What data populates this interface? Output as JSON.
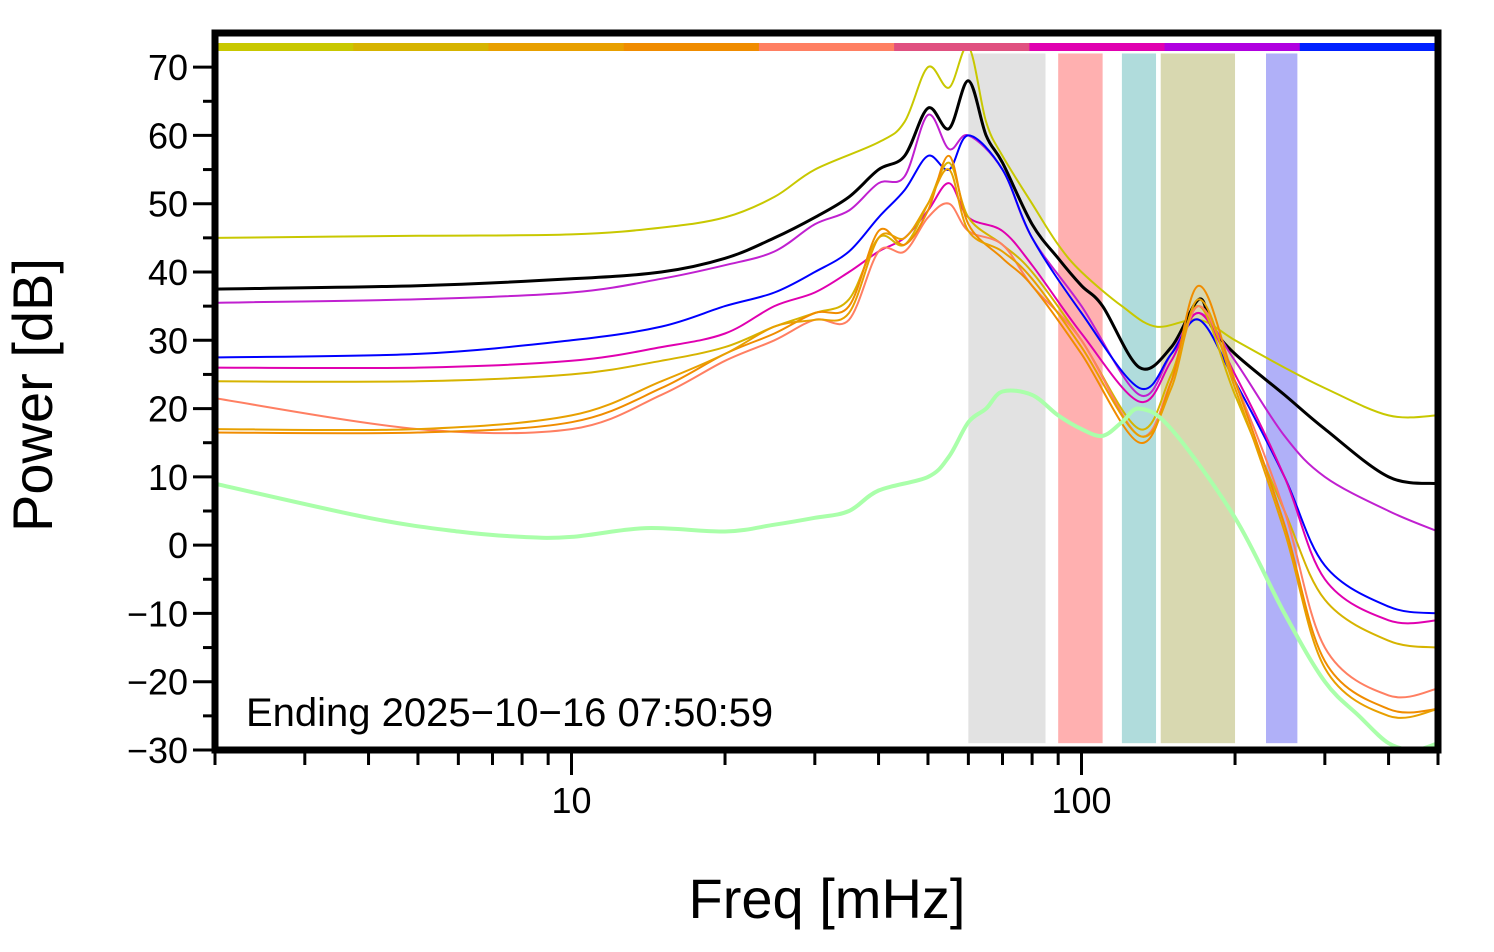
{
  "chart_data": {
    "type": "line",
    "xlabel": "Freq [mHz]",
    "ylabel": "Power [dB]",
    "xscale": "log",
    "xlim": [
      2.0,
      500.0
    ],
    "ylim": [
      -30,
      75
    ],
    "x_ticks": [
      10,
      100
    ],
    "x_tick_labels": [
      "10",
      "100"
    ],
    "y_ticks": [
      70,
      60,
      50,
      40,
      30,
      20,
      10,
      0,
      -10,
      -20,
      -30
    ],
    "y_tick_labels": [
      "70",
      "60",
      "50",
      "40",
      "30",
      "20",
      "10",
      "0",
      "−10",
      "−20",
      "−30"
    ],
    "annotation": "Ending 2025−10−16 07:50:59",
    "grid": false,
    "legend": "none",
    "top_band_colors": [
      "#c8c800",
      "#d6b400",
      "#e8a000",
      "#f08c00",
      "#ff7f62",
      "#e05080",
      "#e000b0",
      "#b000e0",
      "#0020ff"
    ],
    "shaded_bands": [
      {
        "from": 60,
        "to": 85,
        "color": "#e2e2e2"
      },
      {
        "from": 90,
        "to": 110,
        "color": "#ffb0b0"
      },
      {
        "from": 120,
        "to": 140,
        "color": "#b0dcdc"
      },
      {
        "from": 143,
        "to": 200,
        "color": "#d8d8b0"
      },
      {
        "from": 230,
        "to": 265,
        "color": "#b0b0f8"
      }
    ],
    "series": [
      {
        "color": "#c8c800",
        "width": 2,
        "x": [
          2,
          5,
          10,
          15,
          20,
          25,
          30,
          40,
          45,
          50,
          55,
          60,
          65,
          70,
          80,
          90,
          100,
          120,
          140,
          170,
          200,
          250,
          300,
          400,
          500
        ],
        "y": [
          45,
          45.3,
          45.5,
          46.5,
          48,
          51,
          55,
          59,
          62,
          70,
          67,
          73,
          62,
          57,
          50,
          44,
          40,
          35,
          32,
          33,
          30,
          26,
          23,
          19,
          19
        ]
      },
      {
        "color": "#000000",
        "width": 3,
        "x": [
          2,
          5,
          10,
          15,
          20,
          25,
          30,
          35,
          40,
          45,
          50,
          55,
          60,
          65,
          70,
          80,
          90,
          100,
          110,
          130,
          150,
          170,
          180,
          200,
          250,
          300,
          400,
          500
        ],
        "y": [
          37.5,
          38,
          39,
          40,
          42,
          45,
          48,
          51,
          55,
          57,
          64,
          61,
          68,
          60,
          56,
          47,
          42,
          38,
          35,
          26,
          29,
          36,
          32,
          28,
          22,
          17,
          10,
          9
        ]
      },
      {
        "color": "#c020d0",
        "width": 2,
        "x": [
          2,
          5,
          10,
          15,
          20,
          25,
          30,
          35,
          40,
          45,
          50,
          55,
          60,
          70,
          80,
          100,
          130,
          150,
          170,
          200,
          250,
          300,
          400,
          500
        ],
        "y": [
          35.5,
          36,
          37,
          39,
          41,
          43,
          47,
          49,
          53,
          54,
          63,
          58,
          60,
          55,
          45,
          35,
          22,
          28,
          34,
          27,
          16,
          10,
          5,
          2
        ]
      },
      {
        "color": "#0000ff",
        "width": 2,
        "x": [
          2,
          5,
          10,
          15,
          20,
          25,
          30,
          35,
          40,
          45,
          50,
          55,
          60,
          70,
          80,
          100,
          130,
          150,
          170,
          200,
          250,
          300,
          400,
          500
        ],
        "y": [
          27.5,
          28,
          30,
          32,
          35,
          37,
          40,
          43,
          48,
          52,
          57,
          55,
          60,
          55,
          45,
          34,
          23,
          28,
          33,
          24,
          10,
          -3,
          -9,
          -10
        ]
      },
      {
        "color": "#e000b0",
        "width": 2,
        "x": [
          2,
          5,
          10,
          15,
          20,
          25,
          30,
          35,
          40,
          45,
          50,
          55,
          60,
          70,
          80,
          100,
          130,
          150,
          170,
          200,
          250,
          300,
          400,
          500
        ],
        "y": [
          26,
          26,
          27,
          29,
          31,
          35,
          37,
          40,
          43,
          45,
          49,
          53,
          48,
          46,
          41,
          31,
          21,
          27,
          34,
          25,
          10,
          -5,
          -11,
          -11
        ]
      },
      {
        "color": "#d6b400",
        "width": 2,
        "x": [
          2,
          5,
          10,
          15,
          20,
          25,
          30,
          35,
          40,
          45,
          50,
          55,
          60,
          70,
          80,
          100,
          130,
          150,
          170,
          200,
          250,
          300,
          400,
          500
        ],
        "y": [
          24,
          24,
          25,
          27,
          29,
          32,
          34,
          36,
          45,
          44,
          50,
          56,
          48,
          44,
          40,
          30,
          17,
          25,
          35,
          22,
          5,
          -8,
          -14,
          -15
        ]
      },
      {
        "color": "#ff7f62",
        "width": 2,
        "x": [
          2,
          5,
          10,
          15,
          20,
          25,
          30,
          35,
          40,
          45,
          50,
          55,
          60,
          70,
          80,
          100,
          130,
          150,
          170,
          200,
          250,
          300,
          400,
          500
        ],
        "y": [
          21.5,
          17,
          17,
          22,
          27,
          30,
          33,
          33,
          43,
          43,
          48,
          50,
          46,
          44,
          38,
          30,
          16,
          24,
          35,
          24,
          5,
          -15,
          -22,
          -21
        ]
      },
      {
        "color": "#f08c00",
        "width": 2,
        "x": [
          2,
          5,
          10,
          15,
          20,
          25,
          30,
          35,
          40,
          45,
          50,
          55,
          60,
          70,
          80,
          100,
          130,
          150,
          170,
          200,
          250,
          300,
          400,
          500
        ],
        "y": [
          16.5,
          16.5,
          18,
          23,
          28,
          31,
          34,
          35,
          46,
          44,
          49,
          57,
          47,
          42,
          38,
          28,
          15,
          24,
          38,
          24,
          3,
          -17,
          -24,
          -24
        ]
      },
      {
        "color": "#e8a000",
        "width": 2,
        "x": [
          2,
          5,
          10,
          15,
          20,
          25,
          30,
          35,
          40,
          45,
          50,
          55,
          60,
          70,
          80,
          100,
          130,
          150,
          170,
          200,
          250,
          300,
          400,
          500
        ],
        "y": [
          17,
          17,
          19,
          24,
          28,
          32,
          33,
          34,
          45,
          45,
          50,
          55,
          46,
          43,
          39,
          29,
          16,
          23,
          36,
          23,
          2,
          -18,
          -25,
          -24
        ]
      },
      {
        "color": "#aaffaa",
        "width": 4,
        "x": [
          2,
          4,
          6,
          8,
          10,
          14,
          20,
          25,
          30,
          35,
          40,
          50,
          55,
          60,
          65,
          70,
          80,
          90,
          100,
          110,
          120,
          130,
          150,
          200,
          250,
          300,
          350,
          400,
          450,
          500
        ],
        "y": [
          9,
          4,
          2,
          1.2,
          1.2,
          2.5,
          2,
          3,
          4,
          5,
          8,
          10,
          13,
          18,
          20,
          22.5,
          22,
          19,
          17,
          16,
          18,
          20,
          17,
          4,
          -10,
          -20,
          -25,
          -29,
          -30,
          -29
        ]
      }
    ]
  }
}
